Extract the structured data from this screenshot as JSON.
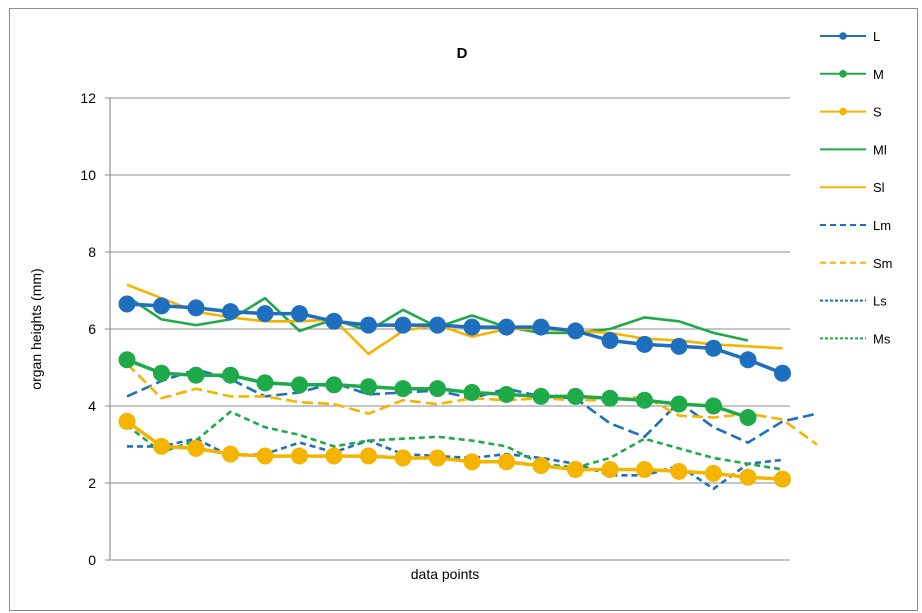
{
  "chart_data": {
    "type": "line",
    "title": "D",
    "xlabel": "data points",
    "ylabel": "organ heights (mm)",
    "ylim": [
      0,
      12
    ],
    "yticks": [
      "0",
      "2",
      "4",
      "6",
      "8",
      "10",
      "12"
    ],
    "grid": "horizontal",
    "legend_position": "right",
    "x": [
      1,
      2,
      3,
      4,
      5,
      6,
      7,
      8,
      9,
      10,
      11,
      12,
      13,
      14,
      15,
      16,
      17,
      18,
      19,
      20,
      21
    ],
    "series": [
      {
        "name": "L",
        "color": "#1f6fbf",
        "style": "solid-marker",
        "values": [
          6.65,
          6.6,
          6.55,
          6.45,
          6.4,
          6.4,
          6.2,
          6.1,
          6.1,
          6.1,
          6.05,
          6.05,
          6.05,
          5.95,
          5.7,
          5.6,
          5.55,
          5.5,
          5.2,
          4.85,
          null
        ]
      },
      {
        "name": "M",
        "color": "#1faa4a",
        "style": "solid-marker",
        "values": [
          5.2,
          4.85,
          4.8,
          4.8,
          4.6,
          4.55,
          4.55,
          4.5,
          4.45,
          4.45,
          4.35,
          4.3,
          4.25,
          4.25,
          4.2,
          4.15,
          4.05,
          4.0,
          3.7,
          null,
          null
        ]
      },
      {
        "name": "S",
        "color": "#f5b400",
        "style": "solid-marker",
        "values": [
          3.6,
          2.95,
          2.9,
          2.75,
          2.7,
          2.7,
          2.7,
          2.7,
          2.65,
          2.65,
          2.55,
          2.55,
          2.45,
          2.35,
          2.35,
          2.35,
          2.3,
          2.25,
          2.15,
          2.1,
          null
        ]
      },
      {
        "name": "Ml",
        "color": "#1faa4a",
        "style": "solid",
        "values": [
          6.85,
          6.25,
          6.1,
          6.25,
          6.8,
          5.95,
          6.25,
          5.95,
          6.5,
          6.05,
          6.35,
          6.05,
          5.9,
          5.9,
          6.0,
          6.3,
          6.2,
          5.9,
          5.7,
          null,
          null
        ]
      },
      {
        "name": "Sl",
        "color": "#f5b400",
        "style": "solid",
        "values": [
          7.15,
          6.8,
          6.45,
          6.3,
          6.2,
          6.2,
          6.25,
          5.35,
          5.95,
          6.1,
          5.8,
          6.0,
          6.0,
          5.95,
          5.9,
          5.75,
          5.7,
          5.6,
          5.55,
          5.5,
          null
        ]
      },
      {
        "name": "Lm",
        "color": "#1f6fbf",
        "style": "dashed",
        "values": [
          4.25,
          4.65,
          4.95,
          4.7,
          4.25,
          4.35,
          4.6,
          4.3,
          4.35,
          4.4,
          4.2,
          4.45,
          4.25,
          4.2,
          3.55,
          3.2,
          4.1,
          3.45,
          3.05,
          3.6,
          3.8
        ]
      },
      {
        "name": "Sm",
        "color": "#f5b400",
        "style": "dashed",
        "values": [
          5.1,
          4.2,
          4.45,
          4.25,
          4.25,
          4.1,
          4.05,
          3.8,
          4.15,
          4.05,
          4.2,
          4.15,
          4.2,
          4.15,
          4.15,
          4.25,
          3.75,
          3.7,
          3.8,
          3.65,
          3.0
        ]
      },
      {
        "name": "Ls",
        "color": "#1f6fbf",
        "style": "dotted",
        "values": [
          2.95,
          2.95,
          3.15,
          2.7,
          2.75,
          3.05,
          2.8,
          3.1,
          2.75,
          2.7,
          2.65,
          2.75,
          2.65,
          2.5,
          2.2,
          2.2,
          2.45,
          1.85,
          2.5,
          2.6,
          null
        ]
      },
      {
        "name": "Ms",
        "color": "#1faa4a",
        "style": "dotted",
        "values": [
          3.5,
          2.8,
          3.1,
          3.85,
          3.45,
          3.25,
          2.95,
          3.1,
          3.15,
          3.2,
          3.1,
          2.95,
          2.5,
          2.4,
          2.65,
          3.15,
          2.9,
          2.65,
          2.5,
          2.35,
          null
        ]
      }
    ]
  }
}
